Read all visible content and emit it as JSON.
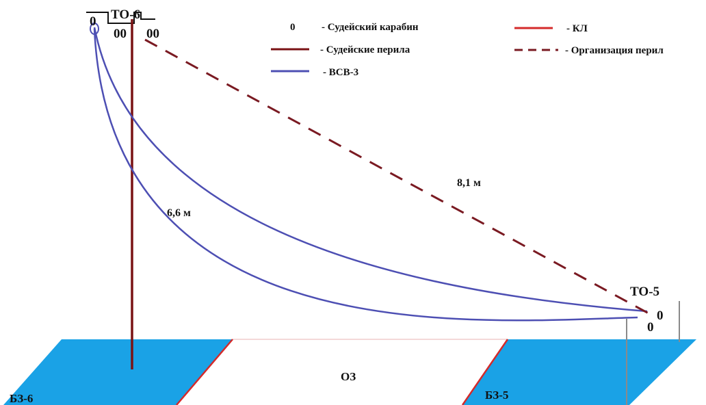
{
  "legend": {
    "carabiner_symbol": "0",
    "carabiner": "- Судейский карабин",
    "judge_rope": "- Судейские перила",
    "vsv": "- ВСВ-3",
    "kl": "- КЛ",
    "org_rope": "- Организация перил"
  },
  "stages": {
    "top": "ТО-6",
    "bottom": "ТО-5"
  },
  "distances": {
    "vertical": "6,6 м",
    "diagonal": "8,1 м"
  },
  "zones": {
    "left": "БЗ-6",
    "middle": "ОЗ",
    "right": "БЗ-5"
  },
  "carabiner_marks": {
    "top_1": "0",
    "top_2": "00",
    "top_3": "00",
    "bottom_1": "0",
    "bottom_2": "0"
  },
  "colors": {
    "judge_rope": "#7a1214",
    "vsv": "#4d4fb3",
    "kl": "#d42a2a",
    "org_rope": "#7a1a22",
    "zone_fill": "#1aa2e6",
    "frame": "#8a8a8a",
    "text": "#111111"
  }
}
